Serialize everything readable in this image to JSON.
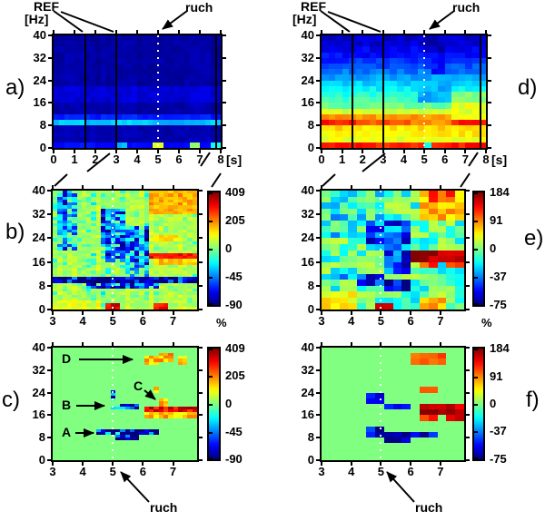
{
  "figure": {
    "labels": {
      "ref": "REF",
      "ruch": "ruch",
      "hz": "[Hz]",
      "s": "[s]",
      "percent": "%",
      "panel_a": "a)",
      "panel_b": "b)",
      "panel_c": "c)",
      "panel_d": "d)",
      "panel_e": "e)",
      "panel_f": "f)",
      "marker_a": "A",
      "marker_b": "B",
      "marker_c": "C",
      "marker_d": "D"
    }
  },
  "chart_data": {
    "type": "heatmap",
    "description": "Six-panel time-frequency figure. a,d: power spectrograms 0-8 s, 0-40 Hz with reference interval REF (vertical lines at 1.5 and 3 s) and movement cue 'ruch' (white dotted line at 5 s). b,e: percent power change maps for 3-7.8 s with jet colorbars. c,f: maps of significant changes on green (zero) background; markers A-D point to ERD/ERS blobs.",
    "annotations": {
      "ref_interval_s": [
        1.5,
        3
      ],
      "movement_cue_s": 5,
      "markers": [
        {
          "label": "A",
          "target_time_s": 4.4,
          "target_freq_hz": 10
        },
        {
          "label": "B",
          "target_time_s": 4.9,
          "target_freq_hz": 19.5
        },
        {
          "label": "C",
          "target_time_s": 6.4,
          "target_freq_hz": 21.5
        },
        {
          "label": "D",
          "target_time_s": 5.9,
          "target_freq_hz": 36.5
        }
      ]
    },
    "colorbars": [
      {
        "id": "b",
        "max": 409,
        "min": -90,
        "ticks": [
          409,
          205,
          0,
          -45,
          -90
        ],
        "unit": "%"
      },
      {
        "id": "e",
        "max": 184,
        "min": -75,
        "ticks": [
          184,
          91,
          0,
          -37,
          -75
        ],
        "unit": "%"
      },
      {
        "id": "c",
        "max": 409,
        "min": -90,
        "ticks": [
          409,
          205,
          0,
          -45,
          -90
        ]
      },
      {
        "id": "f",
        "max": 184,
        "min": -75,
        "ticks": [
          184,
          91,
          0,
          -37,
          -75
        ]
      }
    ],
    "panels": [
      {
        "id": "a",
        "kind": "spectrogram",
        "value_mode": "norm",
        "x_range": [
          0,
          8
        ],
        "y_range": [
          0,
          40
        ],
        "x_ticks": [
          0,
          1,
          2,
          3,
          4,
          5,
          6,
          7,
          8
        ],
        "x_tick_labels": [
          "0",
          "1",
          "2",
          "3",
          "4",
          "5",
          "6",
          "7",
          "8"
        ],
        "y_ticks": [
          0,
          8,
          16,
          24,
          32,
          40
        ],
        "y_tick_labels": [
          "0",
          "8",
          "16",
          "24",
          "32",
          "40"
        ],
        "grid": {
          "cols": 32,
          "rows": 20
        },
        "seed": 3,
        "noise": 0.018,
        "col_noise": 0.012,
        "fbands": [
          [
            0,
            2,
            0.13
          ],
          [
            2,
            6,
            0.05
          ],
          [
            6,
            16,
            0.042
          ],
          [
            16,
            22,
            0.085
          ],
          [
            22,
            40,
            0.035
          ]
        ],
        "patches": [
          [
            0,
            8,
            8,
            10,
            0.3
          ],
          [
            0,
            8,
            10,
            12,
            0.15
          ],
          [
            0.2,
            1.5,
            8,
            10,
            0.34
          ],
          [
            1.7,
            2.9,
            8,
            10,
            0.32
          ],
          [
            3.1,
            4.7,
            8,
            10,
            0.33
          ],
          [
            7.5,
            8,
            8,
            10,
            0.34
          ],
          [
            3.0,
            3.4,
            0,
            2,
            0.3
          ],
          [
            4.7,
            5.2,
            0,
            2,
            0.6
          ],
          [
            6.4,
            7.0,
            0,
            2,
            0.5
          ],
          [
            7.6,
            8,
            0,
            2,
            0.4
          ]
        ],
        "ref_lines_s": [
          1.5,
          3,
          7.78
        ],
        "dotted_line_s": 5
      },
      {
        "id": "d",
        "kind": "spectrogram",
        "value_mode": "norm",
        "x_range": [
          0,
          8
        ],
        "y_range": [
          0,
          40
        ],
        "x_ticks": [
          0,
          1,
          2,
          3,
          4,
          5,
          6,
          7,
          8
        ],
        "x_tick_labels": [
          "0",
          "1",
          "2",
          "3",
          "4",
          "5",
          "6",
          "7",
          "8"
        ],
        "y_ticks": [
          0,
          8,
          16,
          24,
          32,
          40
        ],
        "y_tick_labels": [
          "0",
          "8",
          "16",
          "24",
          "32",
          "40"
        ],
        "grid": {
          "cols": 24,
          "rows": 20
        },
        "seed": 11,
        "noise": 0.035,
        "col_noise": 0,
        "fbands": [
          [
            0,
            2,
            0.85
          ],
          [
            2,
            4,
            0.6
          ],
          [
            4,
            6,
            0.64
          ],
          [
            6,
            8,
            0.66
          ],
          [
            8,
            10,
            0.8
          ],
          [
            10,
            12,
            0.72
          ],
          [
            12,
            14,
            0.58
          ],
          [
            14,
            16,
            0.48
          ],
          [
            16,
            18,
            0.44
          ],
          [
            18,
            20,
            0.4
          ],
          [
            20,
            22,
            0.37
          ],
          [
            22,
            24,
            0.33
          ],
          [
            24,
            26,
            0.28
          ],
          [
            26,
            28,
            0.24
          ],
          [
            28,
            30,
            0.2
          ],
          [
            30,
            32,
            0.17
          ],
          [
            32,
            34,
            0.13
          ],
          [
            34,
            36,
            0.11
          ],
          [
            36,
            38,
            0.085
          ],
          [
            38,
            40,
            0.075
          ]
        ],
        "patches": [
          [
            4.8,
            6.2,
            16,
            26,
            0.3
          ],
          [
            5.2,
            6.1,
            26,
            34,
            0.14
          ],
          [
            5.0,
            6.0,
            34,
            40,
            0.06
          ],
          [
            6.3,
            8,
            10.5,
            16,
            0.6
          ],
          [
            6.3,
            8,
            16,
            20,
            0.5
          ],
          [
            4.3,
            6.4,
            8,
            10,
            0.72
          ],
          [
            0,
            1.6,
            8,
            10,
            0.86
          ],
          [
            6.5,
            8,
            8,
            10,
            0.84
          ],
          [
            4.9,
            5.25,
            0,
            2,
            0.4
          ]
        ],
        "ref_lines_s": [
          1.5,
          3,
          7.75
        ],
        "dotted_line_s": 5
      },
      {
        "id": "b",
        "kind": "percent_change",
        "value_mode": "percent",
        "scale": {
          "max": 409,
          "min": -90
        },
        "base": 30,
        "x_range": [
          3,
          7.8
        ],
        "y_range": [
          0,
          40
        ],
        "x_ticks": [
          3,
          4,
          5,
          6,
          7
        ],
        "x_tick_labels": [
          "3",
          "4",
          "5",
          "6",
          "7"
        ],
        "y_ticks": [
          0,
          8,
          16,
          24,
          32,
          40
        ],
        "y_tick_labels": [
          "0",
          "8",
          "16",
          "24",
          "32",
          "40"
        ],
        "grid": {
          "cols": 30,
          "rows": 40
        },
        "seed": 5,
        "noise": 40,
        "col_noise": 22,
        "patches": [
          [
            3.1,
            3.8,
            20,
            40,
            -38
          ],
          [
            4.6,
            5.4,
            22,
            34,
            -40
          ],
          [
            4.8,
            6.2,
            16,
            28,
            -45
          ],
          [
            5.4,
            6.2,
            10.6,
            16,
            -30
          ],
          [
            3,
            7.8,
            8.8,
            10.6,
            -85
          ],
          [
            4.2,
            6.6,
            6.8,
            8.8,
            -55
          ],
          [
            6.2,
            7.8,
            32,
            40,
            160
          ],
          [
            6.3,
            7.1,
            23,
            25.5,
            130
          ],
          [
            6.3,
            7.8,
            15,
            17,
            140
          ],
          [
            6.2,
            7.8,
            17,
            19.5,
            300
          ],
          [
            3,
            4.6,
            0,
            3,
            80
          ],
          [
            4.8,
            5.3,
            0,
            2,
            330
          ],
          [
            6.4,
            6.9,
            0,
            2,
            290
          ],
          [
            7.2,
            7.8,
            0,
            1.5,
            70
          ]
        ],
        "ref_lines_s": [],
        "dotted_line_s": 5
      },
      {
        "id": "e",
        "kind": "percent_change",
        "value_mode": "percent",
        "scale": {
          "max": 184,
          "min": -75
        },
        "base": 0,
        "x_range": [
          3,
          7.8
        ],
        "y_range": [
          0,
          40
        ],
        "x_ticks": [
          3,
          4,
          5,
          6,
          7
        ],
        "x_tick_labels": [
          "3",
          "4",
          "5",
          "6",
          "7"
        ],
        "y_ticks": [
          0,
          8,
          16,
          24,
          32,
          40
        ],
        "y_tick_labels": [
          "0",
          "8",
          "16",
          "24",
          "32",
          "40"
        ],
        "grid": {
          "cols": 16,
          "rows": 20
        },
        "seed": 13,
        "noise": 26,
        "col_noise": 0,
        "patches": [
          [
            3,
            5,
            24,
            40,
            -12
          ],
          [
            3.2,
            3.7,
            30,
            34,
            -40
          ],
          [
            4.6,
            6.1,
            20,
            30,
            -45
          ],
          [
            5.0,
            6.1,
            12,
            20,
            -52
          ],
          [
            5.2,
            6.1,
            6,
            10,
            -70
          ],
          [
            4.3,
            5.2,
            8,
            12,
            -45
          ],
          [
            3.0,
            4.3,
            10,
            12,
            -35
          ],
          [
            6.1,
            7.8,
            16,
            20,
            165
          ],
          [
            6.3,
            7.0,
            14,
            16,
            110
          ],
          [
            7.3,
            7.8,
            14,
            16,
            120
          ],
          [
            6.2,
            7.8,
            30,
            40,
            70
          ],
          [
            6.7,
            7.5,
            36,
            40,
            110
          ],
          [
            3.0,
            4.2,
            0,
            6,
            45
          ],
          [
            4.8,
            5.4,
            0,
            2,
            150
          ],
          [
            6.4,
            7.3,
            0,
            4,
            70
          ]
        ],
        "ref_lines_s": [],
        "dotted_line_s": 5
      },
      {
        "id": "c",
        "kind": "significant_change",
        "value_mode": "percent",
        "scale": {
          "max": 409,
          "min": -90
        },
        "base": 0,
        "x_range": [
          3,
          7.8
        ],
        "y_range": [
          0,
          40
        ],
        "x_ticks": [
          3,
          4,
          5,
          6,
          7
        ],
        "x_tick_labels": [
          "3",
          "4",
          "5",
          "6",
          "7"
        ],
        "y_ticks": [
          0,
          8,
          16,
          24,
          32,
          40
        ],
        "y_tick_labels": [
          "0",
          "8",
          "16",
          "24",
          "32",
          "40"
        ],
        "grid": {
          "cols": 30,
          "rows": 40
        },
        "seed": 9,
        "noise": 70,
        "noise_in_patches_only": true,
        "col_noise": 0,
        "patches": [
          [
            4.4,
            6.6,
            9.4,
            11,
            -80
          ],
          [
            5.1,
            5.9,
            7,
            9.4,
            -70
          ],
          [
            5.9,
            6.6,
            9.4,
            10.4,
            -55
          ],
          [
            4.85,
            5.15,
            21,
            25,
            -65
          ],
          [
            5.0,
            5.9,
            18,
            20,
            -60
          ],
          [
            6.1,
            7.8,
            15.5,
            17,
            150
          ],
          [
            6.1,
            7.8,
            17,
            19,
            320
          ],
          [
            6.5,
            6.8,
            19,
            22,
            150
          ],
          [
            6.4,
            6.6,
            24.5,
            26,
            150
          ],
          [
            6.1,
            6.5,
            34,
            37.5,
            160
          ],
          [
            6.6,
            7.05,
            35,
            38,
            170
          ],
          [
            7.1,
            7.5,
            34.5,
            37,
            150
          ]
        ],
        "ref_lines_s": [],
        "dotted_line_s": 5
      },
      {
        "id": "f",
        "kind": "significant_change",
        "value_mode": "percent",
        "scale": {
          "max": 184,
          "min": -75
        },
        "base": 0,
        "x_range": [
          3,
          7.8
        ],
        "y_range": [
          0,
          40
        ],
        "x_ticks": [
          3,
          4,
          5,
          6,
          7
        ],
        "x_tick_labels": [
          "3",
          "4",
          "5",
          "6",
          "7"
        ],
        "y_ticks": [
          0,
          8,
          16,
          24,
          32,
          40
        ],
        "y_tick_labels": [
          "0",
          "8",
          "16",
          "24",
          "32",
          "40"
        ],
        "grid": {
          "cols": 16,
          "rows": 20
        },
        "seed": 17,
        "noise": 22,
        "noise_in_patches_only": true,
        "col_noise": 0,
        "patches": [
          [
            6.0,
            7.3,
            34,
            38,
            110
          ],
          [
            6.9,
            7.25,
            36,
            38,
            135
          ],
          [
            6.3,
            6.8,
            24,
            26,
            100
          ],
          [
            4.6,
            5.0,
            20,
            24,
            -60
          ],
          [
            5.0,
            5.9,
            18,
            20,
            -62
          ],
          [
            6.2,
            7.8,
            16,
            20,
            160
          ],
          [
            6.2,
            6.6,
            18,
            20,
            184
          ],
          [
            7.2,
            7.6,
            18,
            20,
            184
          ],
          [
            6.3,
            6.9,
            14,
            16,
            115
          ],
          [
            7.3,
            7.8,
            14,
            16,
            140
          ],
          [
            4.5,
            5.2,
            8,
            12,
            -58
          ],
          [
            5.1,
            6.0,
            6,
            10,
            -75
          ],
          [
            6.0,
            6.8,
            8,
            10,
            -55
          ]
        ],
        "ref_lines_s": [],
        "dotted_line_s": 5
      }
    ]
  }
}
